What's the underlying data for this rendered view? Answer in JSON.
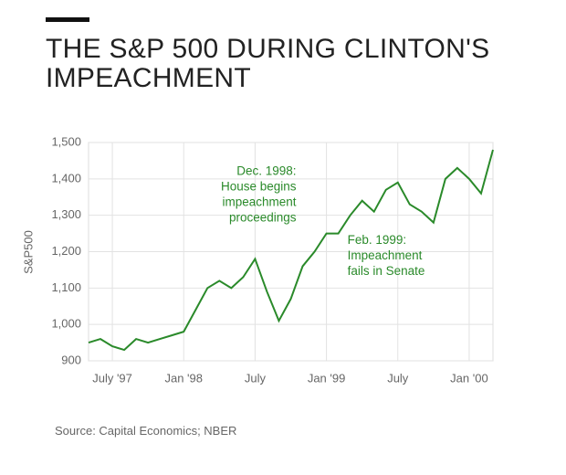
{
  "chart_data": {
    "type": "line",
    "title": "THE S&P 500 DURING CLINTON'S IMPEACHMENT",
    "y_label": "S&P500",
    "source": "Source: Capital Economics; NBER",
    "annotations": [
      {
        "lines": [
          "Dec. 1998:",
          "House begins",
          "impeachment",
          "proceedings"
        ],
        "x": "1998-12",
        "y": 1420,
        "align": "end"
      },
      {
        "lines": [
          "Feb. 1999:",
          "Impeachment",
          "fails in Senate"
        ],
        "x": "1999-02",
        "y": 1230,
        "align": "start"
      }
    ],
    "x": [
      "1997-05",
      "1997-06",
      "1997-07",
      "1997-08",
      "1997-09",
      "1997-10",
      "1997-11",
      "1997-12",
      "1998-01",
      "1998-02",
      "1998-03",
      "1998-04",
      "1998-05",
      "1998-06",
      "1998-07",
      "1998-08",
      "1998-09",
      "1998-10",
      "1998-11",
      "1998-12",
      "1999-01",
      "1999-02",
      "1999-03",
      "1999-04",
      "1999-05",
      "1999-06",
      "1999-07",
      "1999-08",
      "1999-09",
      "1999-10",
      "1999-11",
      "1999-12",
      "2000-01",
      "2000-02",
      "2000-03"
    ],
    "series": [
      {
        "name": "S&P500",
        "color": "#2a8a2a",
        "values": [
          950,
          960,
          940,
          930,
          960,
          950,
          960,
          970,
          980,
          1040,
          1100,
          1120,
          1100,
          1130,
          1180,
          1090,
          1010,
          1070,
          1160,
          1200,
          1250,
          1250,
          1300,
          1340,
          1310,
          1370,
          1390,
          1330,
          1310,
          1280,
          1400,
          1430,
          1400,
          1360,
          1480
        ]
      }
    ],
    "xlim": [
      "1997-05",
      "2000-03"
    ],
    "xticks": [
      {
        "value": "1997-07",
        "label": "July '97"
      },
      {
        "value": "1998-01",
        "label": "Jan '98"
      },
      {
        "value": "1998-07",
        "label": "July"
      },
      {
        "value": "1999-01",
        "label": "Jan '99"
      },
      {
        "value": "1999-07",
        "label": "July"
      },
      {
        "value": "2000-01",
        "label": "Jan '00"
      }
    ],
    "ylim": [
      900,
      1500
    ],
    "yticks": [
      {
        "value": 900,
        "label": "900"
      },
      {
        "value": 1000,
        "label": "1,000"
      },
      {
        "value": 1100,
        "label": "1,100"
      },
      {
        "value": 1200,
        "label": "1,200"
      },
      {
        "value": 1300,
        "label": "1,300"
      },
      {
        "value": 1400,
        "label": "1,400"
      },
      {
        "value": 1500,
        "label": "1,500"
      }
    ],
    "grid": true
  }
}
